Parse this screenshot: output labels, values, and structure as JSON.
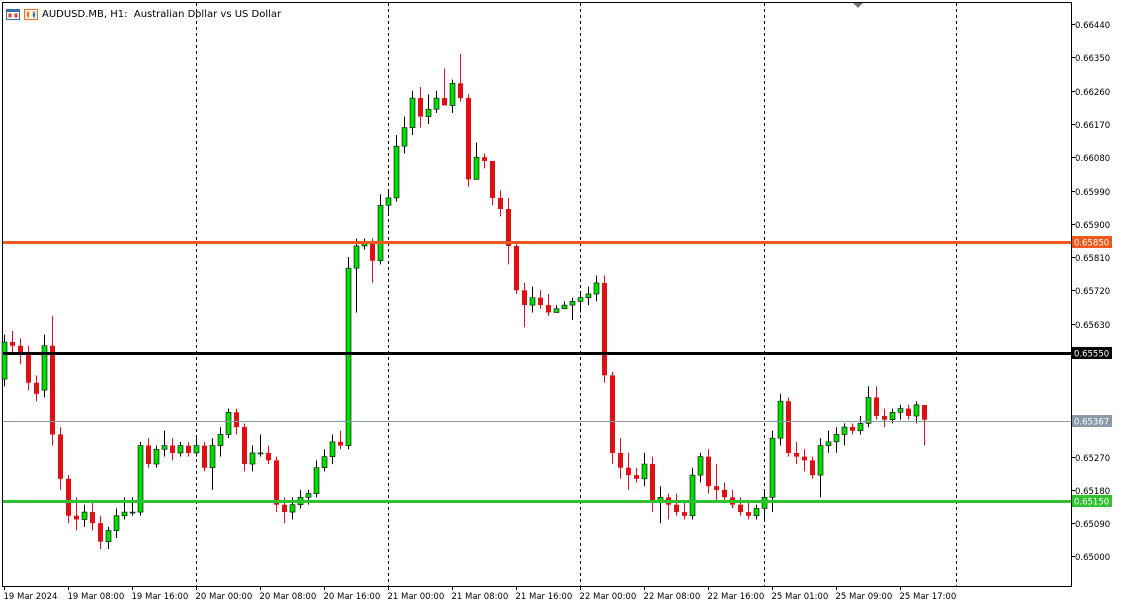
{
  "header": {
    "symbol_title": "AUDUSD.MB, H1:  Australian Dollar vs US Dollar",
    "icons": [
      "chart-window-icon",
      "chart-type-icon"
    ]
  },
  "colors": {
    "up": "#00dd00",
    "down": "#dd1111",
    "resistance": "#f0581e",
    "pivot": "#000000",
    "support": "#2fc12f",
    "current": "#8a9aa8"
  },
  "chart_data": {
    "type": "candlestick",
    "symbol": "AUDUSD.MB",
    "timeframe": "H1",
    "ylim": [
      0.6492,
      0.665
    ],
    "y_ticks": [
      "0.66440",
      "0.66350",
      "0.66260",
      "0.66170",
      "0.66080",
      "0.65990",
      "0.65900",
      "0.65810",
      "0.65720",
      "0.65630",
      "0.65545",
      "0.65270",
      "0.65180",
      "0.65090",
      "0.65000"
    ],
    "x_ticks": [
      {
        "bar": 0,
        "label": "19 Mar 2024"
      },
      {
        "bar": 8,
        "label": "19 Mar 08:00"
      },
      {
        "bar": 16,
        "label": "19 Mar 16:00"
      },
      {
        "bar": 24,
        "label": "20 Mar 00:00"
      },
      {
        "bar": 32,
        "label": "20 Mar 08:00"
      },
      {
        "bar": 40,
        "label": "20 Mar 16:00"
      },
      {
        "bar": 48,
        "label": "21 Mar 00:00"
      },
      {
        "bar": 56,
        "label": "21 Mar 08:00"
      },
      {
        "bar": 64,
        "label": "21 Mar 16:00"
      },
      {
        "bar": 72,
        "label": "22 Mar 00:00"
      },
      {
        "bar": 80,
        "label": "22 Mar 08:00"
      },
      {
        "bar": 88,
        "label": "22 Mar 16:00"
      },
      {
        "bar": 96,
        "label": "25 Mar 01:00"
      },
      {
        "bar": 104,
        "label": "25 Mar 09:00"
      },
      {
        "bar": 112,
        "label": "25 Mar 17:00"
      }
    ],
    "separators": [
      24,
      48,
      72,
      95,
      119
    ],
    "horizontal_lines": [
      {
        "name": "resistance",
        "price": 0.6585,
        "label": "0.65850",
        "color_key": "resistance"
      },
      {
        "name": "pivot",
        "price": 0.6555,
        "label": "0.65550",
        "color_key": "pivot"
      },
      {
        "name": "current",
        "price": 0.65367,
        "label": "0.65367",
        "color_key": "current"
      },
      {
        "name": "support",
        "price": 0.6515,
        "label": "0.65150",
        "color_key": "support"
      }
    ],
    "candles": [
      [
        0.6548,
        0.656,
        0.6546,
        0.6558
      ],
      [
        0.6558,
        0.6561,
        0.6555,
        0.6557
      ],
      [
        0.6557,
        0.6559,
        0.6552,
        0.6555
      ],
      [
        0.6555,
        0.6557,
        0.6545,
        0.6547
      ],
      [
        0.6547,
        0.6549,
        0.6542,
        0.6544
      ],
      [
        0.6545,
        0.656,
        0.6543,
        0.6557
      ],
      [
        0.6557,
        0.6565,
        0.653,
        0.6533
      ],
      [
        0.6533,
        0.6535,
        0.6518,
        0.6521
      ],
      [
        0.6521,
        0.6522,
        0.6509,
        0.6511
      ],
      [
        0.6511,
        0.6516,
        0.6507,
        0.651
      ],
      [
        0.651,
        0.6514,
        0.6508,
        0.6512
      ],
      [
        0.6512,
        0.6515,
        0.6507,
        0.6509
      ],
      [
        0.6509,
        0.6511,
        0.6502,
        0.6504
      ],
      [
        0.6504,
        0.6508,
        0.6502,
        0.6507
      ],
      [
        0.6507,
        0.6513,
        0.6505,
        0.6511
      ],
      [
        0.6511,
        0.6516,
        0.651,
        0.6512
      ],
      [
        0.6512,
        0.6516,
        0.6511,
        0.6512
      ],
      [
        0.6512,
        0.6531,
        0.6511,
        0.653
      ],
      [
        0.653,
        0.6532,
        0.6524,
        0.6525
      ],
      [
        0.6525,
        0.653,
        0.6524,
        0.6529
      ],
      [
        0.6529,
        0.6534,
        0.6527,
        0.653
      ],
      [
        0.653,
        0.6532,
        0.6526,
        0.6528
      ],
      [
        0.6528,
        0.6531,
        0.6527,
        0.653
      ],
      [
        0.653,
        0.6531,
        0.6527,
        0.6528
      ],
      [
        0.6528,
        0.6532,
        0.6527,
        0.653
      ],
      [
        0.653,
        0.6531,
        0.6523,
        0.6524
      ],
      [
        0.6524,
        0.6532,
        0.6518,
        0.653
      ],
      [
        0.653,
        0.6535,
        0.6527,
        0.6533
      ],
      [
        0.6533,
        0.654,
        0.6532,
        0.6539
      ],
      [
        0.6539,
        0.654,
        0.6533,
        0.6535
      ],
      [
        0.6535,
        0.6536,
        0.6523,
        0.6525
      ],
      [
        0.6525,
        0.653,
        0.6523,
        0.6528
      ],
      [
        0.6528,
        0.6533,
        0.6527,
        0.6528
      ],
      [
        0.6528,
        0.653,
        0.6525,
        0.6526
      ],
      [
        0.6526,
        0.6527,
        0.6512,
        0.6514
      ],
      [
        0.6514,
        0.6516,
        0.6509,
        0.6512
      ],
      [
        0.6512,
        0.6516,
        0.651,
        0.6514
      ],
      [
        0.6514,
        0.6518,
        0.6513,
        0.6516
      ],
      [
        0.6516,
        0.6518,
        0.6514,
        0.6517
      ],
      [
        0.6517,
        0.6526,
        0.6516,
        0.6524
      ],
      [
        0.6524,
        0.6529,
        0.6523,
        0.6527
      ],
      [
        0.6527,
        0.6533,
        0.6525,
        0.6531
      ],
      [
        0.6531,
        0.6534,
        0.6529,
        0.653
      ],
      [
        0.653,
        0.6581,
        0.6529,
        0.6578
      ],
      [
        0.6578,
        0.6586,
        0.6566,
        0.6584
      ],
      [
        0.6584,
        0.6586,
        0.6583,
        0.6585
      ],
      [
        0.6585,
        0.6586,
        0.6574,
        0.658
      ],
      [
        0.658,
        0.6598,
        0.6579,
        0.6595
      ],
      [
        0.6595,
        0.6599,
        0.6593,
        0.6597
      ],
      [
        0.6597,
        0.6614,
        0.6596,
        0.6611
      ],
      [
        0.6611,
        0.6619,
        0.6609,
        0.6616
      ],
      [
        0.6616,
        0.6626,
        0.6614,
        0.6624
      ],
      [
        0.6624,
        0.6627,
        0.6616,
        0.6619
      ],
      [
        0.6619,
        0.6625,
        0.6617,
        0.6621
      ],
      [
        0.6621,
        0.6626,
        0.662,
        0.6624
      ],
      [
        0.6624,
        0.6632,
        0.6622,
        0.6622
      ],
      [
        0.6622,
        0.6629,
        0.662,
        0.6628
      ],
      [
        0.6628,
        0.6636,
        0.6623,
        0.6624
      ],
      [
        0.6624,
        0.6625,
        0.66,
        0.6602
      ],
      [
        0.6602,
        0.6612,
        0.6603,
        0.6608
      ],
      [
        0.6608,
        0.6609,
        0.6605,
        0.6607
      ],
      [
        0.6607,
        0.6606,
        0.6595,
        0.6597
      ],
      [
        0.6597,
        0.6599,
        0.6592,
        0.6594
      ],
      [
        0.6594,
        0.6597,
        0.6579,
        0.6584
      ],
      [
        0.6584,
        0.6585,
        0.6571,
        0.6572
      ],
      [
        0.6572,
        0.6574,
        0.6562,
        0.6568
      ],
      [
        0.6568,
        0.6573,
        0.6566,
        0.657
      ],
      [
        0.657,
        0.6572,
        0.6567,
        0.6568
      ],
      [
        0.6568,
        0.6571,
        0.6565,
        0.6566
      ],
      [
        0.6566,
        0.6568,
        0.6567,
        0.6567
      ],
      [
        0.6567,
        0.6569,
        0.6567,
        0.6568
      ],
      [
        0.6568,
        0.657,
        0.6564,
        0.6569
      ],
      [
        0.6569,
        0.6571,
        0.6566,
        0.657
      ],
      [
        0.657,
        0.6573,
        0.6568,
        0.6571
      ],
      [
        0.6571,
        0.6576,
        0.6569,
        0.6574
      ],
      [
        0.6574,
        0.6576,
        0.6547,
        0.6549
      ],
      [
        0.6549,
        0.655,
        0.6525,
        0.6528
      ],
      [
        0.6528,
        0.6532,
        0.6521,
        0.6524
      ],
      [
        0.6524,
        0.6528,
        0.6518,
        0.6522
      ],
      [
        0.6522,
        0.6524,
        0.652,
        0.6521
      ],
      [
        0.6521,
        0.6528,
        0.6519,
        0.6525
      ],
      [
        0.6525,
        0.6527,
        0.6512,
        0.6515
      ],
      [
        0.6515,
        0.6519,
        0.6509,
        0.6516
      ],
      [
        0.6516,
        0.6517,
        0.651,
        0.6514
      ],
      [
        0.6514,
        0.6517,
        0.6511,
        0.6512
      ],
      [
        0.6512,
        0.6515,
        0.651,
        0.6511
      ],
      [
        0.6511,
        0.6524,
        0.651,
        0.6522
      ],
      [
        0.6522,
        0.6528,
        0.652,
        0.6527
      ],
      [
        0.6527,
        0.6529,
        0.6517,
        0.6519
      ],
      [
        0.6519,
        0.6525,
        0.6515,
        0.6518
      ],
      [
        0.6518,
        0.652,
        0.6515,
        0.6516
      ],
      [
        0.6516,
        0.6518,
        0.6513,
        0.6514
      ],
      [
        0.6514,
        0.6516,
        0.6511,
        0.6512
      ],
      [
        0.6512,
        0.6515,
        0.651,
        0.6511
      ],
      [
        0.6511,
        0.6514,
        0.651,
        0.6513
      ],
      [
        0.6513,
        0.6518,
        0.651,
        0.6516
      ],
      [
        0.6516,
        0.6534,
        0.6512,
        0.6532
      ],
      [
        0.6532,
        0.6544,
        0.653,
        0.6542
      ],
      [
        0.6542,
        0.6543,
        0.6527,
        0.6528
      ],
      [
        0.6528,
        0.6531,
        0.6525,
        0.6527
      ],
      [
        0.6527,
        0.6529,
        0.6523,
        0.6526
      ],
      [
        0.6526,
        0.6527,
        0.6521,
        0.6522
      ],
      [
        0.6522,
        0.6532,
        0.6516,
        0.653
      ],
      [
        0.653,
        0.6534,
        0.6528,
        0.6531
      ],
      [
        0.6531,
        0.6535,
        0.6528,
        0.6533
      ],
      [
        0.6533,
        0.6536,
        0.653,
        0.6535
      ],
      [
        0.6535,
        0.6536,
        0.6533,
        0.6534
      ],
      [
        0.6534,
        0.6538,
        0.6533,
        0.6536
      ],
      [
        0.6536,
        0.6546,
        0.6535,
        0.6543
      ],
      [
        0.6543,
        0.6546,
        0.6537,
        0.6538
      ],
      [
        0.6538,
        0.654,
        0.6535,
        0.6537
      ],
      [
        0.6537,
        0.654,
        0.6536,
        0.6539
      ],
      [
        0.6539,
        0.6541,
        0.6537,
        0.654
      ],
      [
        0.654,
        0.6541,
        0.6537,
        0.6538
      ],
      [
        0.6538,
        0.6542,
        0.6536,
        0.6541
      ],
      [
        0.6541,
        0.6541,
        0.653,
        0.6537
      ]
    ]
  }
}
